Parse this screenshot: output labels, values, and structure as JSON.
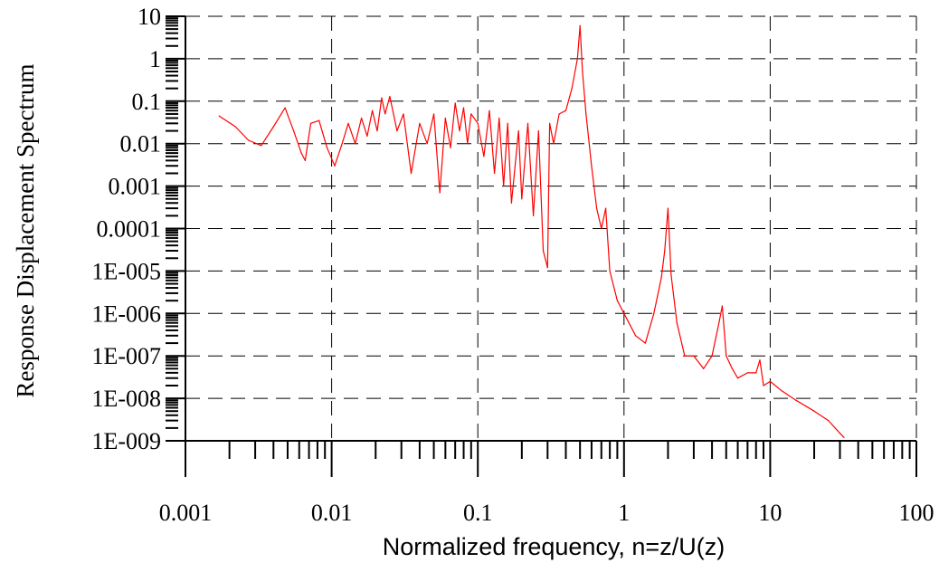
{
  "chart_data": {
    "type": "line",
    "xlabel": "Normalized frequency, n=z/U(z)",
    "ylabel": "Response Displacement Spectrum",
    "x_scale": "log",
    "y_scale": "log",
    "xlim": [
      0.001,
      100
    ],
    "ylim": [
      1e-09,
      10
    ],
    "x_tick_labels": [
      "0.001",
      "0.01",
      "0.1",
      "1",
      "10",
      "100"
    ],
    "y_tick_labels": [
      "10",
      "1",
      "0.1",
      "0.01",
      "0.001",
      "0.0001",
      "1E-005",
      "1E-006",
      "1E-007",
      "1E-008",
      "1E-009"
    ],
    "grid": true,
    "series_color": "#ff0000",
    "series": [
      {
        "x": [
          0.0017,
          0.0022,
          0.0027,
          0.0033,
          0.004,
          0.0048,
          0.0055,
          0.0062,
          0.0066,
          0.0072,
          0.0082,
          0.0093,
          0.0105,
          0.0118,
          0.013,
          0.0145,
          0.016,
          0.0175,
          0.019,
          0.0205,
          0.022,
          0.0232,
          0.025,
          0.028,
          0.031,
          0.035,
          0.04,
          0.045,
          0.05,
          0.055,
          0.06,
          0.065,
          0.07,
          0.075,
          0.08,
          0.085,
          0.09,
          0.1,
          0.11,
          0.12,
          0.13,
          0.14,
          0.15,
          0.16,
          0.17,
          0.19,
          0.2,
          0.22,
          0.24,
          0.26,
          0.28,
          0.3,
          0.31,
          0.33,
          0.36,
          0.4,
          0.44,
          0.48,
          0.5,
          0.52,
          0.55,
          0.6,
          0.65,
          0.7,
          0.75,
          0.8,
          0.9,
          1.0,
          1.2,
          1.4,
          1.6,
          1.8,
          1.9,
          2.0,
          2.1,
          2.3,
          2.6,
          3.0,
          3.5,
          4.0,
          4.5,
          4.7,
          5.0,
          5.5,
          6.0,
          7.0,
          8.0,
          8.5,
          9.0,
          10.0,
          12.0,
          15.0,
          20.0,
          25.0,
          30.0,
          32.0
        ],
        "y": [
          0.045,
          0.025,
          0.012,
          0.009,
          0.025,
          0.07,
          0.02,
          0.006,
          0.004,
          0.03,
          0.035,
          0.008,
          0.003,
          0.01,
          0.03,
          0.01,
          0.04,
          0.015,
          0.06,
          0.02,
          0.12,
          0.05,
          0.13,
          0.02,
          0.05,
          0.002,
          0.03,
          0.01,
          0.05,
          0.0007,
          0.04,
          0.008,
          0.09,
          0.02,
          0.07,
          0.01,
          0.05,
          0.03,
          0.005,
          0.06,
          0.002,
          0.04,
          0.001,
          0.03,
          0.0004,
          0.02,
          0.0005,
          0.03,
          0.0002,
          0.02,
          3e-05,
          1.2e-05,
          0.03,
          0.01,
          0.05,
          0.06,
          0.2,
          1.0,
          6.0,
          0.5,
          0.05,
          0.003,
          0.0003,
          0.0001,
          0.0003,
          1e-05,
          2e-06,
          1e-06,
          3e-07,
          2e-07,
          1e-06,
          7e-06,
          3e-05,
          0.0003,
          8e-06,
          6e-07,
          1e-07,
          1e-07,
          5e-08,
          1e-07,
          7e-07,
          1.5e-06,
          1e-07,
          5e-08,
          3e-08,
          4e-08,
          4e-08,
          8e-08,
          2e-08,
          2.5e-08,
          1.5e-08,
          9e-09,
          5e-09,
          3e-09,
          1.5e-09,
          1.2e-09
        ]
      }
    ]
  }
}
